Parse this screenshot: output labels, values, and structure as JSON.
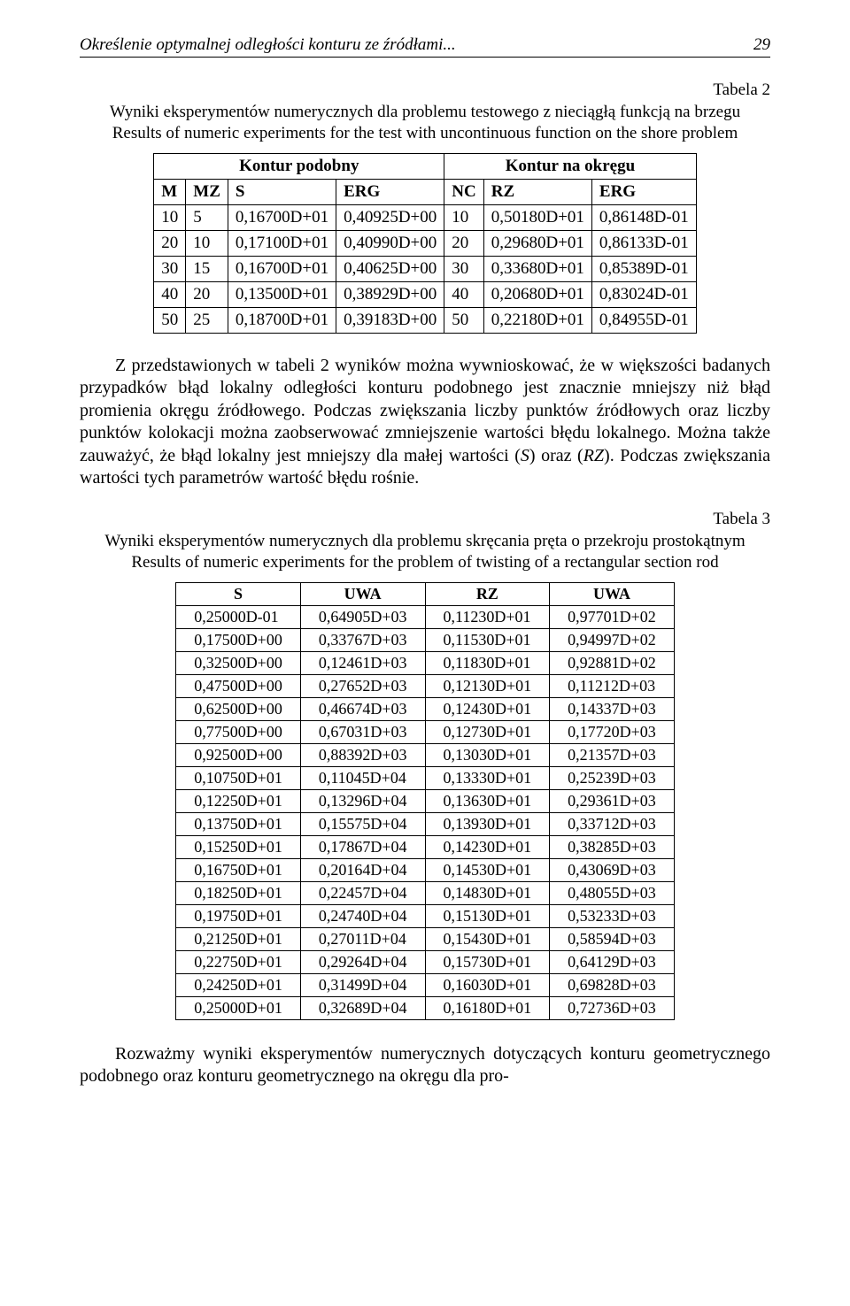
{
  "header": {
    "running_title": "Określenie optymalnej odległości konturu ze źródłami...",
    "page_number": "29"
  },
  "table2": {
    "label": "Tabela 2",
    "caption_pl": "Wyniki eksperymentów numerycznych dla problemu testowego z nieciągłą funkcją na brzegu",
    "caption_en": "Results of numeric experiments for the test with uncontinuous function on the shore problem",
    "group_left": "Kontur podobny",
    "group_right": "Kontur na okręgu",
    "cols": {
      "m": "M",
      "mz": "MZ",
      "s": "S",
      "erg1": "ERG",
      "nc": "NC",
      "rz": "RZ",
      "erg2": "ERG"
    },
    "rows": [
      {
        "m": "10",
        "mz": "5",
        "s": "0,16700D+01",
        "erg1": "0,40925D+00",
        "nc": "10",
        "rz": "0,50180D+01",
        "erg2": "0,86148D-01"
      },
      {
        "m": "20",
        "mz": "10",
        "s": "0,17100D+01",
        "erg1": "0,40990D+00",
        "nc": "20",
        "rz": "0,29680D+01",
        "erg2": "0,86133D-01"
      },
      {
        "m": "30",
        "mz": "15",
        "s": "0,16700D+01",
        "erg1": "0,40625D+00",
        "nc": "30",
        "rz": "0,33680D+01",
        "erg2": "0,85389D-01"
      },
      {
        "m": "40",
        "mz": "20",
        "s": "0,13500D+01",
        "erg1": "0,38929D+00",
        "nc": "40",
        "rz": "0,20680D+01",
        "erg2": "0,83024D-01"
      },
      {
        "m": "50",
        "mz": "25",
        "s": "0,18700D+01",
        "erg1": "0,39183D+00",
        "nc": "50",
        "rz": "0,22180D+01",
        "erg2": "0,84955D-01"
      }
    ]
  },
  "para1": "Z przedstawionych w tabeli 2 wyników można wywnioskować, że w większości badanych przypadków błąd lokalny odległości konturu podobnego jest znacznie mniejszy niż błąd promienia okręgu źródłowego. Podczas zwiększania liczby punktów źródłowych oraz liczby punktów kolokacji można zaobserwować zmniejszenie wartości błędu lokalnego. Można także zauważyć, że błąd lokalny jest mniejszy dla małej wartości (S) oraz (RZ). Podczas zwiększania wartości tych parametrów wartość błędu rośnie.",
  "table3": {
    "label": "Tabela 3",
    "caption_pl": "Wyniki eksperymentów numerycznych dla problemu skręcania pręta o przekroju prostokątnym",
    "caption_en": "Results of numeric experiments for the problem of twisting of a rectangular section rod",
    "cols": {
      "s": "S",
      "uwa1": "UWA",
      "rz": "RZ",
      "uwa2": "UWA"
    },
    "rows": [
      {
        "s": "0,25000D-01",
        "uwa1": "0,64905D+03",
        "rz": "0,11230D+01",
        "uwa2": "0,97701D+02"
      },
      {
        "s": "0,17500D+00",
        "uwa1": "0,33767D+03",
        "rz": "0,11530D+01",
        "uwa2": "0,94997D+02"
      },
      {
        "s": "0,32500D+00",
        "uwa1": "0,12461D+03",
        "rz": "0,11830D+01",
        "uwa2": "0,92881D+02"
      },
      {
        "s": "0,47500D+00",
        "uwa1": "0,27652D+03",
        "rz": "0,12130D+01",
        "uwa2": "0,11212D+03"
      },
      {
        "s": "0,62500D+00",
        "uwa1": "0,46674D+03",
        "rz": "0,12430D+01",
        "uwa2": "0,14337D+03"
      },
      {
        "s": "0,77500D+00",
        "uwa1": "0,67031D+03",
        "rz": "0,12730D+01",
        "uwa2": "0,17720D+03"
      },
      {
        "s": "0,92500D+00",
        "uwa1": "0,88392D+03",
        "rz": "0,13030D+01",
        "uwa2": "0,21357D+03"
      },
      {
        "s": "0,10750D+01",
        "uwa1": "0,11045D+04",
        "rz": "0,13330D+01",
        "uwa2": "0,25239D+03"
      },
      {
        "s": "0,12250D+01",
        "uwa1": "0,13296D+04",
        "rz": "0,13630D+01",
        "uwa2": "0,29361D+03"
      },
      {
        "s": "0,13750D+01",
        "uwa1": "0,15575D+04",
        "rz": "0,13930D+01",
        "uwa2": "0,33712D+03"
      },
      {
        "s": "0,15250D+01",
        "uwa1": "0,17867D+04",
        "rz": "0,14230D+01",
        "uwa2": "0,38285D+03"
      },
      {
        "s": "0,16750D+01",
        "uwa1": "0,20164D+04",
        "rz": "0,14530D+01",
        "uwa2": "0,43069D+03"
      },
      {
        "s": "0,18250D+01",
        "uwa1": "0,22457D+04",
        "rz": "0,14830D+01",
        "uwa2": "0,48055D+03"
      },
      {
        "s": "0,19750D+01",
        "uwa1": "0,24740D+04",
        "rz": "0,15130D+01",
        "uwa2": "0,53233D+03"
      },
      {
        "s": "0,21250D+01",
        "uwa1": "0,27011D+04",
        "rz": "0,15430D+01",
        "uwa2": "0,58594D+03"
      },
      {
        "s": "0,22750D+01",
        "uwa1": "0,29264D+04",
        "rz": "0,15730D+01",
        "uwa2": "0,64129D+03"
      },
      {
        "s": "0,24250D+01",
        "uwa1": "0,31499D+04",
        "rz": "0,16030D+01",
        "uwa2": "0,69828D+03"
      },
      {
        "s": "0,25000D+01",
        "uwa1": "0,32689D+04",
        "rz": "0,16180D+01",
        "uwa2": "0,72736D+03"
      }
    ]
  },
  "para2": "Rozważmy wyniki eksperymentów numerycznych dotyczących konturu geometrycznego podobnego oraz konturu geometrycznego na okręgu dla pro-"
}
